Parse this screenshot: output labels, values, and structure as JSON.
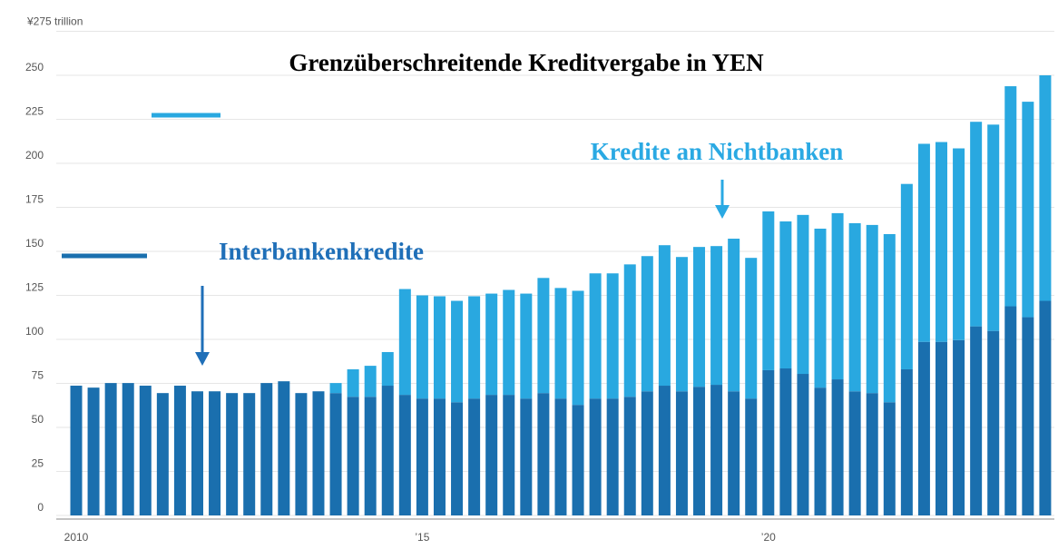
{
  "chart_data": {
    "type": "stacked_bar",
    "title": "Grenzüberschreitende Kreditvergabe in YEN",
    "categories": [
      "2010",
      null,
      null,
      null,
      null,
      null,
      null,
      null,
      null,
      null,
      null,
      null,
      null,
      null,
      null,
      null,
      null,
      null,
      null,
      null,
      "’15",
      null,
      null,
      null,
      null,
      null,
      null,
      null,
      null,
      null,
      null,
      null,
      null,
      null,
      null,
      null,
      null,
      null,
      null,
      null,
      "’20",
      null,
      null,
      null,
      null,
      null,
      null,
      null,
      null,
      null,
      null,
      null,
      null,
      null,
      null,
      null,
      null
    ],
    "series": [
      {
        "name": "Interbankenkredite",
        "color": "#1a6fae",
        "axis": "y",
        "values": [
          73.7,
          72.6,
          75.2,
          75.2,
          73.7,
          69.5,
          73.7,
          70.5,
          70.5,
          69.5,
          69.5,
          75.2,
          76.2,
          69.5,
          70.5,
          69.5,
          67.4,
          67.4,
          73.7,
          68.5,
          66.4,
          66.4,
          64.3,
          66.4,
          68.5,
          68.5,
          66.4,
          69.5,
          66.4,
          62.8,
          66.4,
          66.4,
          67.4,
          70.5,
          73.7,
          70.5,
          73.1,
          74.2,
          70.5,
          66.4,
          82.5,
          83.5,
          80.4,
          72.6,
          77.3,
          70.5,
          69.5,
          64.3,
          83,
          98.6,
          98.6,
          99.6,
          107.4,
          104.8,
          118.8,
          112.6,
          121.9
        ]
      },
      {
        "name": "Kredite an Nichtbanken",
        "color": "#29a8e0",
        "axis": "y",
        "values": [
          0,
          0,
          0,
          0,
          0,
          0,
          0,
          0,
          0,
          0,
          0,
          0,
          0,
          0,
          0,
          5.7,
          15.6,
          17.6,
          19.1,
          60.1,
          58.6,
          58.1,
          57.6,
          58.1,
          57.5,
          59.6,
          59.6,
          65.4,
          62.8,
          64.8,
          71.1,
          71.1,
          75.2,
          76.8,
          79.8,
          76.3,
          79.4,
          78.8,
          86.7,
          79.9,
          90.2,
          83.5,
          90.3,
          90.3,
          94.4,
          95.5,
          95.5,
          95.5,
          105.3,
          112.5,
          113.5,
          108.9,
          116.2,
          117.2,
          125,
          122.4,
          128.1
        ]
      }
    ],
    "ylim": [
      0,
      275
    ],
    "yticks": [
      0,
      25,
      50,
      75,
      100,
      125,
      150,
      175,
      200,
      225,
      250,
      {
        "value": 275,
        "label": "¥275 trillion"
      }
    ],
    "grid": true
  }
}
